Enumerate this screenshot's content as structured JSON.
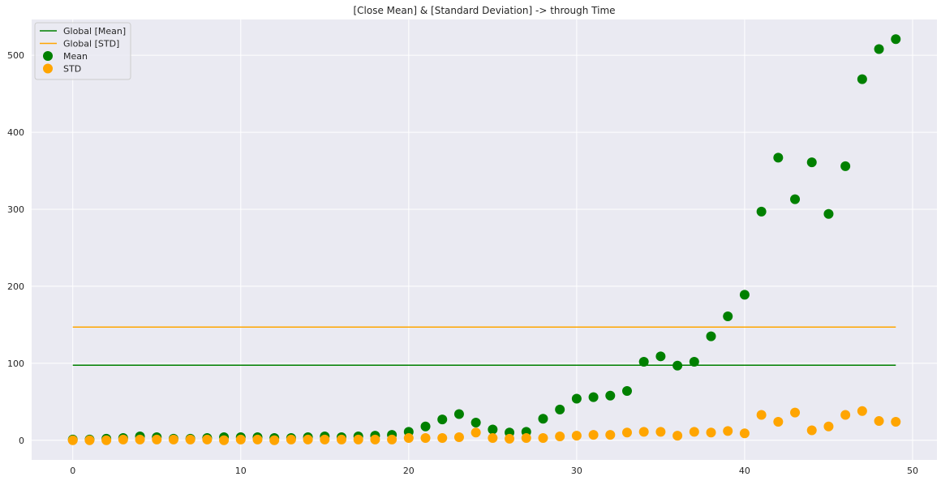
{
  "chart_data": {
    "type": "scatter",
    "title": "[Close Mean] & [Standard Deviation] -> through Time",
    "xlabel": "",
    "ylabel": "",
    "xlim": [
      -2.45,
      51.45
    ],
    "ylim": [
      -25.5,
      546.5
    ],
    "xticks": [
      0,
      10,
      20,
      30,
      40,
      50
    ],
    "yticks": [
      0,
      100,
      200,
      300,
      400,
      500
    ],
    "grid": true,
    "legend_position": "top-left",
    "background": "#eaeaf2",
    "series": [
      {
        "name": "Global [Mean]",
        "kind": "line",
        "color": "#008000",
        "x": [
          0,
          49
        ],
        "y": [
          97.5,
          97.5
        ]
      },
      {
        "name": "Global [STD]",
        "kind": "line",
        "color": "#ffa500",
        "x": [
          0,
          49
        ],
        "y": [
          147,
          147
        ]
      },
      {
        "name": "Mean",
        "kind": "scatter",
        "color": "#008000",
        "x": [
          0,
          1,
          2,
          3,
          4,
          5,
          6,
          7,
          8,
          9,
          10,
          11,
          12,
          13,
          14,
          15,
          16,
          17,
          18,
          19,
          20,
          21,
          22,
          23,
          24,
          25,
          26,
          27,
          28,
          29,
          30,
          31,
          32,
          33,
          34,
          35,
          36,
          37,
          38,
          39,
          40,
          41,
          42,
          43,
          44,
          45,
          46,
          47,
          48,
          49
        ],
        "y": [
          1,
          1,
          2,
          3,
          5,
          4,
          2,
          2,
          3,
          4,
          4,
          4,
          3,
          3,
          4,
          5,
          4,
          5,
          6,
          7,
          11,
          18,
          27,
          34,
          23,
          14,
          10,
          11,
          28,
          40,
          54,
          56,
          58,
          64,
          102,
          109,
          97,
          102,
          135,
          161,
          189,
          297,
          367,
          313,
          361,
          294,
          356,
          469,
          508,
          521
        ]
      },
      {
        "name": "STD",
        "kind": "scatter",
        "color": "#ffa500",
        "x": [
          0,
          1,
          2,
          3,
          4,
          5,
          6,
          7,
          8,
          9,
          10,
          11,
          12,
          13,
          14,
          15,
          16,
          17,
          18,
          19,
          20,
          21,
          22,
          23,
          24,
          25,
          26,
          27,
          28,
          29,
          30,
          31,
          32,
          33,
          34,
          35,
          36,
          37,
          38,
          39,
          40,
          41,
          42,
          43,
          44,
          45,
          46,
          47,
          48,
          49
        ],
        "y": [
          0,
          0,
          0,
          1,
          1,
          1,
          1,
          1,
          1,
          0,
          1,
          1,
          0,
          1,
          1,
          1,
          1,
          1,
          1,
          1,
          3,
          3,
          3,
          4,
          10,
          3,
          2,
          3,
          3,
          5,
          6,
          7,
          7,
          10,
          11,
          11,
          6,
          11,
          10,
          12,
          9,
          33,
          24,
          36,
          13,
          18,
          33,
          38,
          25,
          24
        ]
      }
    ]
  }
}
